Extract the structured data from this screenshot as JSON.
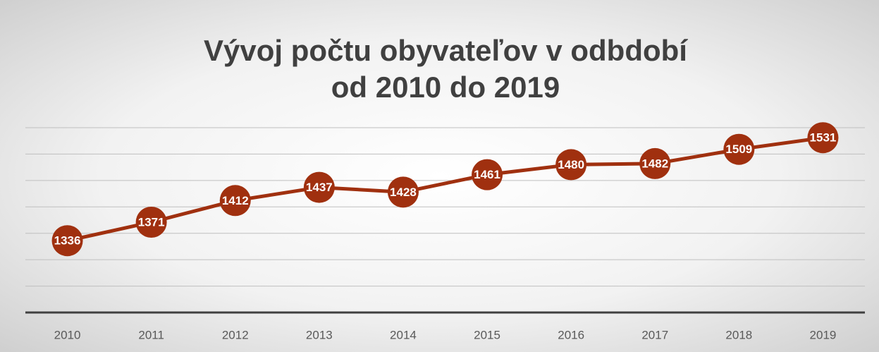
{
  "chart_data": {
    "type": "line",
    "title": [
      "Vývoj počtu obyvateľov v odbdobí",
      "od 2010 do 2019"
    ],
    "categories": [
      "2010",
      "2011",
      "2012",
      "2013",
      "2014",
      "2015",
      "2016",
      "2017",
      "2018",
      "2019"
    ],
    "values": [
      1336,
      1371,
      1412,
      1437,
      1428,
      1461,
      1480,
      1482,
      1509,
      1531
    ],
    "color": "#a0300f",
    "ylim": [
      1200,
      1550
    ],
    "yticks": [
      1200,
      1250,
      1300,
      1350,
      1400,
      1450,
      1500,
      1550
    ],
    "show_ytick_labels": false,
    "grid": true,
    "data_labels": true
  }
}
